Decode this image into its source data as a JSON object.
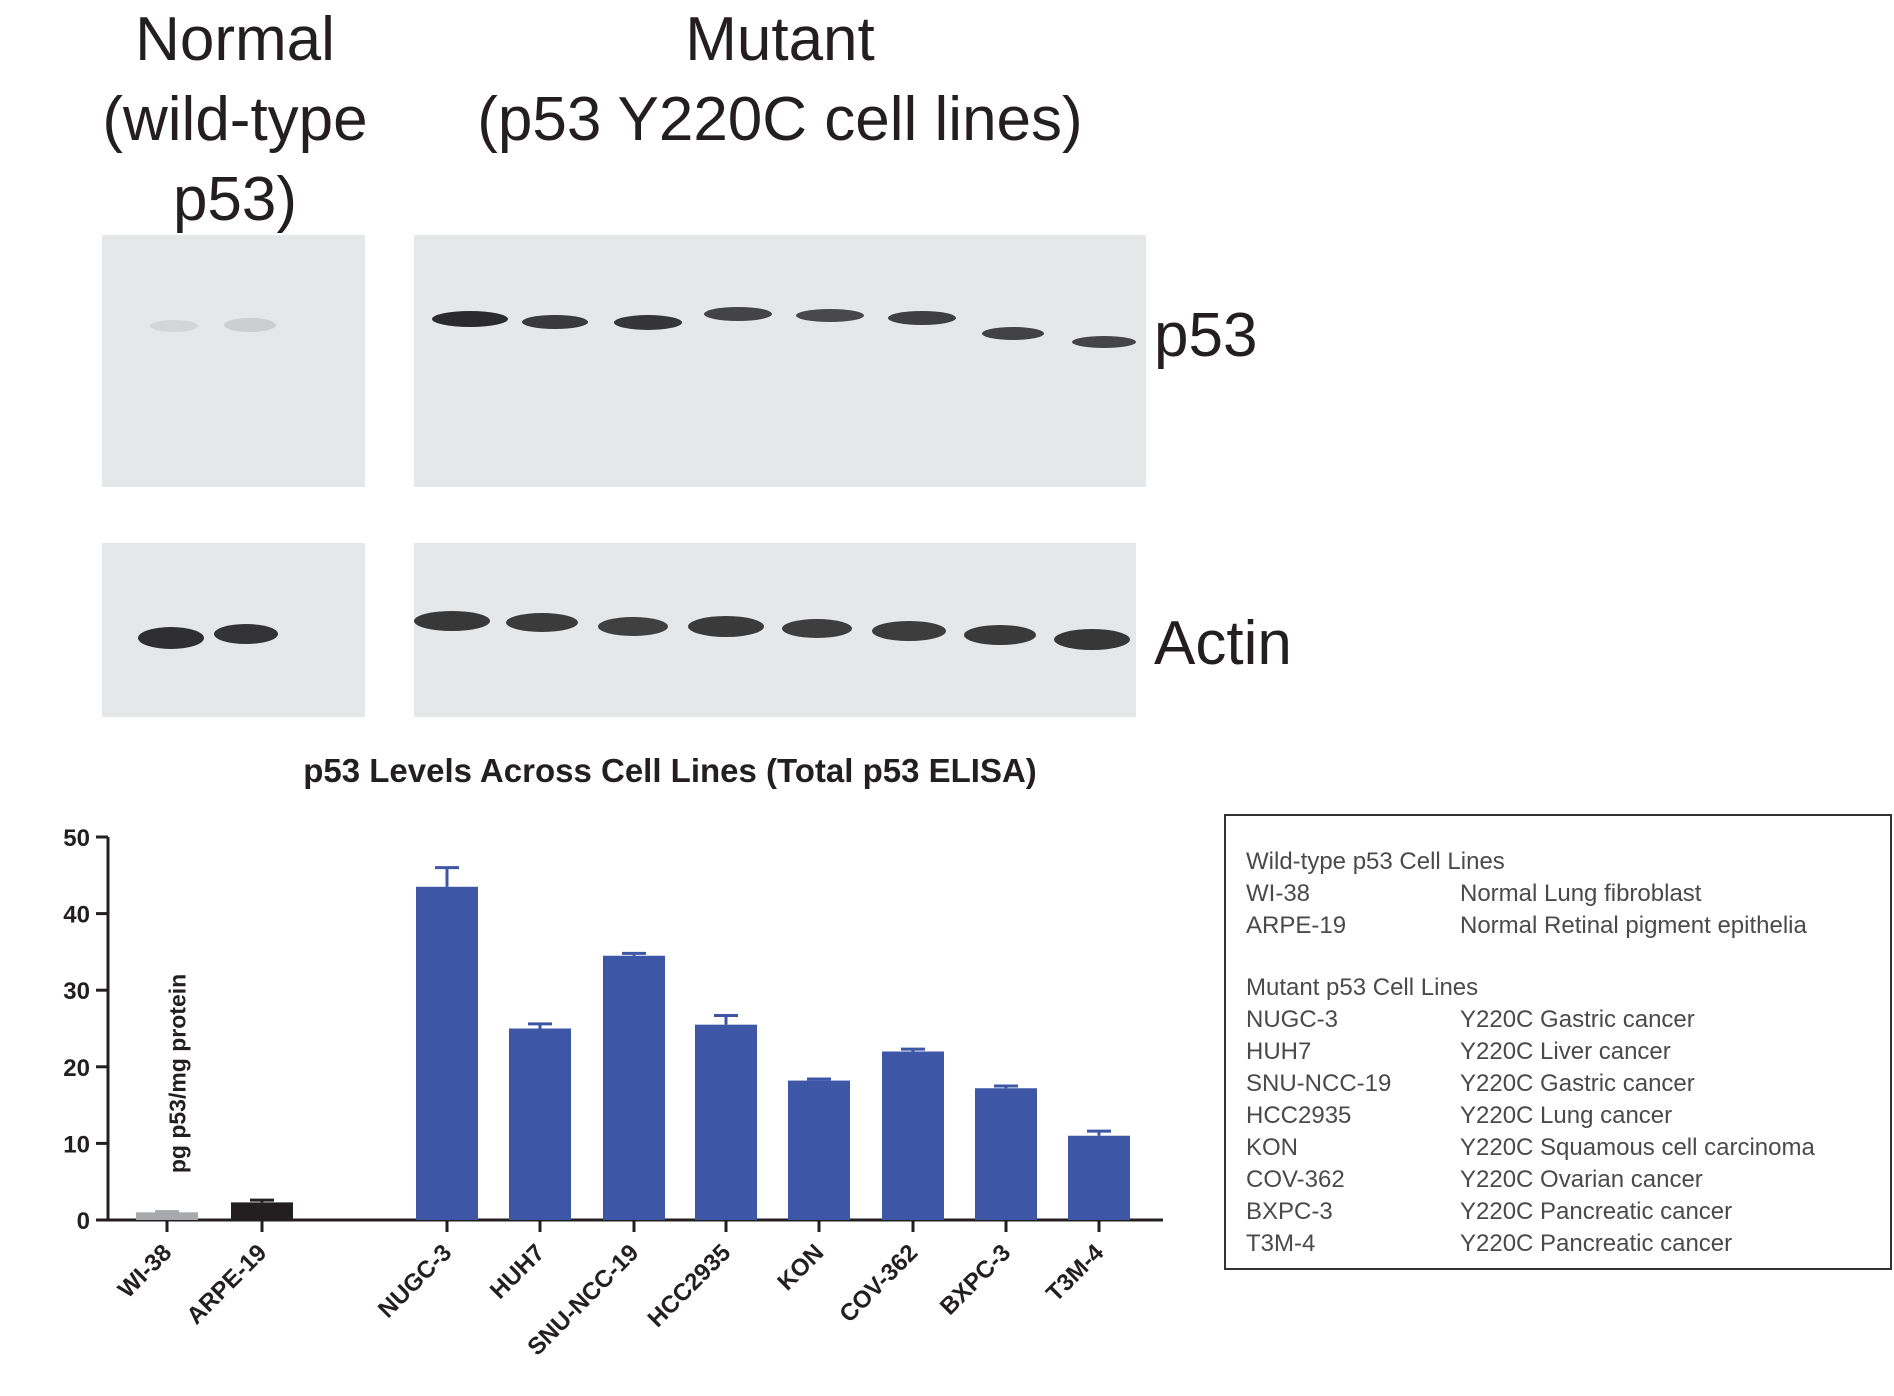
{
  "blot": {
    "header_normal": [
      "Normal",
      "(wild-type",
      "p53)"
    ],
    "header_mutant": [
      "Mutant",
      "(p53 Y220C cell lines)"
    ],
    "label_p53": "p53",
    "label_actin": "Actin"
  },
  "chart_data": {
    "type": "bar",
    "title": "p53 Levels Across Cell Lines (Total p53 ELISA)",
    "ylabel": "pg p53/mg protein",
    "xlabel": "",
    "ylim": [
      0,
      50
    ],
    "yticks": [
      0,
      10,
      20,
      30,
      40,
      50
    ],
    "categories": [
      "WI-38",
      "ARPE-19",
      "NUGC-3",
      "HUH7",
      "SNU-NCC-19",
      "HCC2935",
      "KON",
      "COV-362",
      "BXPC-3",
      "T3M-4"
    ],
    "values": [
      1.0,
      2.3,
      43.5,
      25.0,
      34.5,
      25.5,
      18.2,
      22.0,
      17.2,
      11.0
    ],
    "errors": [
      0.1,
      0.3,
      2.5,
      0.6,
      0.3,
      1.2,
      0.2,
      0.3,
      0.3,
      0.6
    ],
    "colors": [
      "#a7a9ac",
      "#231f20",
      "#3d56a6",
      "#3d56a6",
      "#3d56a6",
      "#3d56a6",
      "#3d56a6",
      "#3d56a6",
      "#3d56a6",
      "#3d56a6"
    ],
    "grid": false
  },
  "legend": {
    "wild_title": "Wild-type p53 Cell Lines",
    "wild": [
      {
        "name": "WI-38",
        "desc": "Normal Lung fibroblast"
      },
      {
        "name": "ARPE-19",
        "desc": "Normal Retinal pigment epithelia"
      }
    ],
    "mutant_title": "Mutant p53 Cell Lines",
    "mutant": [
      {
        "name": "NUGC-3",
        "desc": "Y220C Gastric cancer"
      },
      {
        "name": "HUH7",
        "desc": "Y220C Liver cancer"
      },
      {
        "name": "SNU-NCC-19",
        "desc": "Y220C Gastric cancer"
      },
      {
        "name": "HCC2935",
        "desc": "Y220C Lung cancer"
      },
      {
        "name": "KON",
        "desc": "Y220C Squamous cell carcinoma"
      },
      {
        "name": "COV-362",
        "desc": "Y220C Ovarian cancer"
      },
      {
        "name": "BXPC-3",
        "desc": "Y220C Pancreatic cancer"
      },
      {
        "name": "T3M-4",
        "desc": "Y220C Pancreatic cancer"
      }
    ]
  }
}
